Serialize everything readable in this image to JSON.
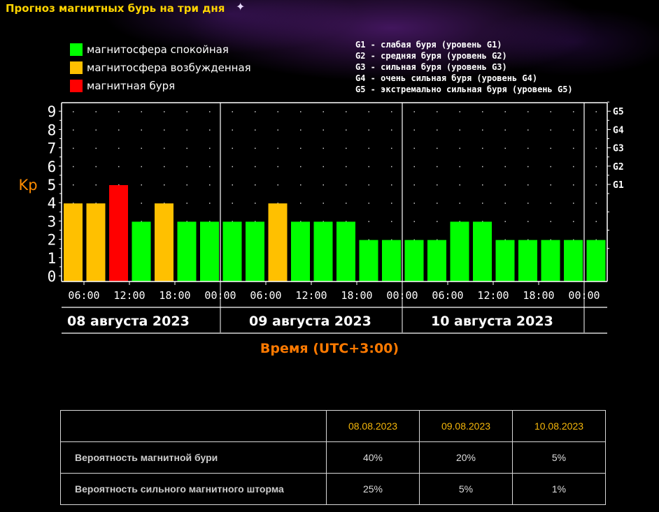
{
  "header": {
    "title": "Прогноз магнитных бурь на три дня"
  },
  "colors": {
    "calm": "#00ff00",
    "excited": "#ffc000",
    "storm": "#ff0000",
    "ylabel": "#ff8c00",
    "axis_title": "#ff7a00",
    "date_header": "#f5b70a"
  },
  "legend": [
    {
      "label": "магнитосфера спокойная",
      "color": "#00ff00"
    },
    {
      "label": "магнитосфера возбужденная",
      "color": "#ffc000"
    },
    {
      "label": "магнитная буря",
      "color": "#ff0000"
    }
  ],
  "g_legend": [
    "G1 - слабая буря (уровень G1)",
    "G2 - средняя буря (уровень G2)",
    "G3 - сильная буря (уровень G3)",
    "G4 - очень сильная буря (уровень G4)",
    "G5 - экстремально сильная буря (уровень G5)"
  ],
  "chart_data": {
    "type": "bar",
    "ylabel": "Kp",
    "xlabel": "Время (UTC+3:00)",
    "ylim": [
      0,
      9
    ],
    "yticks": [
      "0",
      "1",
      "2",
      "3",
      "4",
      "5",
      "6",
      "7",
      "8",
      "9"
    ],
    "right_ticks": [
      {
        "label": "G1",
        "kp": 5
      },
      {
        "label": "G2",
        "kp": 6
      },
      {
        "label": "G3",
        "kp": 7
      },
      {
        "label": "G4",
        "kp": 8
      },
      {
        "label": "G5",
        "kp": 9
      }
    ],
    "time_ticks": [
      "06:00",
      "12:00",
      "18:00",
      "00:00",
      "06:00",
      "12:00",
      "18:00",
      "00:00",
      "06:00",
      "12:00",
      "18:00",
      "00:00"
    ],
    "days": [
      "08 августа 2023",
      "09 августа 2023",
      "10 августа 2023"
    ],
    "values": [
      4,
      4,
      5,
      3,
      4,
      3,
      3,
      3,
      3,
      4,
      3,
      3,
      3,
      2,
      2,
      2,
      2,
      3,
      3,
      2,
      2,
      2,
      2,
      2
    ],
    "levels": [
      "excited",
      "excited",
      "storm",
      "calm",
      "excited",
      "calm",
      "calm",
      "calm",
      "calm",
      "excited",
      "calm",
      "calm",
      "calm",
      "calm",
      "calm",
      "calm",
      "calm",
      "calm",
      "calm",
      "calm",
      "calm",
      "calm",
      "calm",
      "calm"
    ],
    "grid": true
  },
  "table": {
    "dates": [
      "08.08.2023",
      "09.08.2023",
      "10.08.2023"
    ],
    "rows": [
      {
        "label": "Вероятность магнитной бури",
        "values": [
          "40%",
          "20%",
          "5%"
        ]
      },
      {
        "label": "Вероятность сильного магнитного шторма",
        "values": [
          "25%",
          "5%",
          "1%"
        ]
      }
    ]
  }
}
